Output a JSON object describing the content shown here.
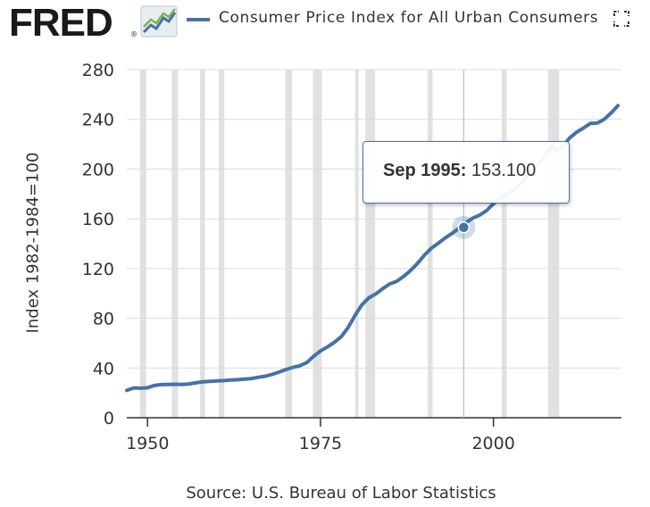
{
  "header": {
    "logo_text": "FRED",
    "logo_reg": "®",
    "legend_label": "Consumer Price Index for All Urban Consumers",
    "legend_color": "#4572a7"
  },
  "colors": {
    "series": "#4572a7",
    "recession": "#e1e1e1",
    "grid": "#dcdcdc"
  },
  "tooltip": {
    "date": "Sep 1995:",
    "value": "153.100",
    "x": 1995.7,
    "y": 153.1
  },
  "source": "Source: U.S. Bureau of Labor Statistics",
  "chart_data": {
    "type": "line",
    "title": "",
    "xlabel": "",
    "ylabel": "Index 1982-1984=100",
    "xlim": [
      1947,
      2018.5
    ],
    "ylim": [
      0,
      280
    ],
    "xticks": [
      1950,
      1975,
      2000
    ],
    "yticks": [
      0,
      40,
      80,
      120,
      160,
      200,
      240,
      280
    ],
    "grid": "horizontal",
    "recessions": [
      [
        1948.9,
        1949.8
      ],
      [
        1953.5,
        1954.4
      ],
      [
        1957.6,
        1958.3
      ],
      [
        1960.3,
        1961.1
      ],
      [
        1969.9,
        1970.9
      ],
      [
        1973.9,
        1975.2
      ],
      [
        1980.0,
        1980.5
      ],
      [
        1981.5,
        1982.9
      ],
      [
        1990.5,
        1991.2
      ],
      [
        2001.2,
        2001.9
      ],
      [
        2007.9,
        2009.5
      ]
    ],
    "series": [
      {
        "name": "Consumer Price Index for All Urban Consumers",
        "x": [
          1947,
          1948,
          1949,
          1950,
          1951,
          1952,
          1953,
          1954,
          1955,
          1956,
          1957,
          1958,
          1959,
          1960,
          1961,
          1962,
          1963,
          1964,
          1965,
          1966,
          1967,
          1968,
          1969,
          1970,
          1971,
          1972,
          1973,
          1974,
          1975,
          1976,
          1977,
          1978,
          1979,
          1980,
          1981,
          1982,
          1983,
          1984,
          1985,
          1986,
          1987,
          1988,
          1989,
          1990,
          1991,
          1992,
          1993,
          1994,
          1995,
          1995.7,
          1996,
          1997,
          1998,
          1999,
          2000,
          2001,
          2002,
          2003,
          2004,
          2005,
          2006,
          2007,
          2008,
          2008.5,
          2009,
          2010,
          2011,
          2012,
          2013,
          2014,
          2015,
          2016,
          2017,
          2018
        ],
        "y": [
          22.0,
          24.0,
          23.8,
          24.1,
          26.0,
          26.6,
          26.8,
          26.9,
          26.8,
          27.2,
          28.1,
          28.9,
          29.2,
          29.6,
          29.9,
          30.3,
          30.6,
          31.0,
          31.5,
          32.5,
          33.4,
          34.8,
          36.7,
          38.8,
          40.5,
          41.8,
          44.4,
          49.3,
          53.8,
          56.9,
          60.6,
          65.2,
          72.6,
          82.4,
          90.9,
          96.5,
          99.6,
          103.9,
          107.6,
          109.6,
          113.6,
          118.3,
          124.0,
          130.7,
          136.2,
          140.3,
          144.5,
          148.2,
          152.4,
          153.1,
          156.9,
          160.5,
          163.0,
          166.6,
          172.2,
          177.1,
          179.9,
          184.0,
          188.9,
          195.3,
          201.6,
          207.3,
          215.3,
          219.0,
          214.5,
          218.1,
          224.9,
          229.6,
          233.0,
          236.7,
          237.0,
          240.0,
          245.1,
          251.1
        ]
      }
    ]
  }
}
